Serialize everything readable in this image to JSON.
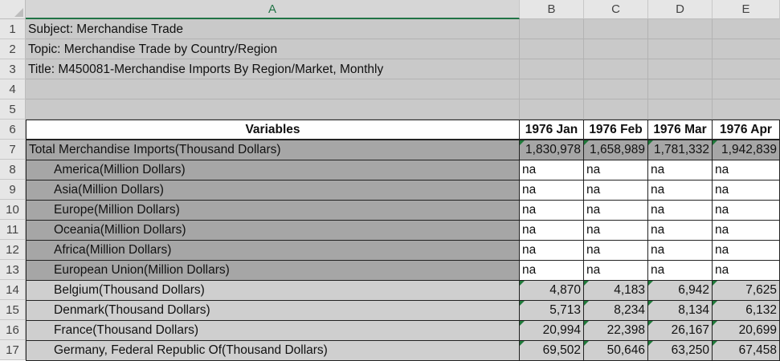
{
  "columns": [
    "A",
    "B",
    "C",
    "D",
    "E"
  ],
  "rows": [
    "1",
    "2",
    "3",
    "4",
    "5",
    "6",
    "7",
    "8",
    "9",
    "10",
    "11",
    "12",
    "13",
    "14",
    "15",
    "16",
    "17"
  ],
  "meta": {
    "subject": "Subject: Merchandise Trade",
    "topic": "Topic: Merchandise Trade by Country/Region",
    "title": "Title: M450081-Merchandise Imports By Region/Market, Monthly"
  },
  "header": {
    "variables": "Variables",
    "months": [
      "1976 Jan",
      "1976 Feb",
      "1976 Mar",
      "1976 Apr"
    ]
  },
  "data_rows": [
    {
      "label": "Total Merchandise Imports(Thousand Dollars)",
      "values": [
        "1,830,978",
        "1,658,989",
        "1,781,332",
        "1,942,839"
      ]
    },
    {
      "label": "America(Million Dollars)",
      "values": [
        "na",
        "na",
        "na",
        "na"
      ]
    },
    {
      "label": "Asia(Million Dollars)",
      "values": [
        "na",
        "na",
        "na",
        "na"
      ]
    },
    {
      "label": "Europe(Million Dollars)",
      "values": [
        "na",
        "na",
        "na",
        "na"
      ]
    },
    {
      "label": "Oceania(Million Dollars)",
      "values": [
        "na",
        "na",
        "na",
        "na"
      ]
    },
    {
      "label": "Africa(Million Dollars)",
      "values": [
        "na",
        "na",
        "na",
        "na"
      ]
    },
    {
      "label": "European Union(Million Dollars)",
      "values": [
        "na",
        "na",
        "na",
        "na"
      ]
    },
    {
      "label": "Belgium(Thousand Dollars)",
      "values": [
        "4,870",
        "4,183",
        "6,942",
        "7,625"
      ]
    },
    {
      "label": "Denmark(Thousand Dollars)",
      "values": [
        "5,713",
        "8,234",
        "8,134",
        "6,132"
      ]
    },
    {
      "label": "France(Thousand Dollars)",
      "values": [
        "20,994",
        "22,398",
        "26,167",
        "20,699"
      ]
    },
    {
      "label": "Germany, Federal Republic Of(Thousand Dollars)",
      "values": [
        "69,502",
        "50,646",
        "63,250",
        "67,458"
      ]
    }
  ],
  "colors": {
    "meta_fill": "#c9c9c9",
    "dark_fill": "#a6a6a6",
    "light_fill": "#cfcfcf",
    "accent": "#217346"
  }
}
